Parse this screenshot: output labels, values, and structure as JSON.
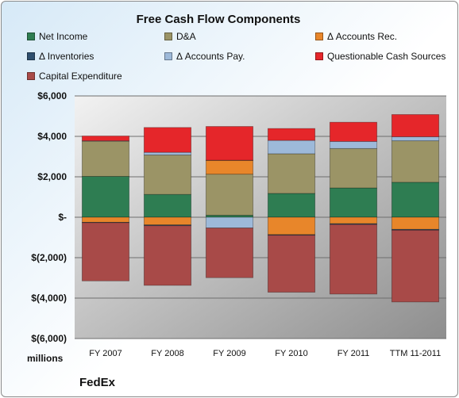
{
  "company": "FedEx",
  "chart_data": {
    "type": "bar",
    "stacked": true,
    "title": "Free Cash Flow Components",
    "units": "millions",
    "categories": [
      "FY 2007",
      "FY 2008",
      "FY 2009",
      "FY 2010",
      "FY 2011",
      "TTM 11-2011"
    ],
    "ylim": [
      -6000,
      6000
    ],
    "yticks": [
      6000,
      4000,
      2000,
      0,
      -2000,
      -4000,
      -6000
    ],
    "ytick_labels": [
      "$6,000",
      "$4,000",
      "$2,000",
      "$-",
      "$(2,000)",
      "$(4,000)",
      "$(6,000)"
    ],
    "grid": true,
    "legend_position": "top",
    "series": [
      {
        "name": "Net Income",
        "color": "#2e7d52",
        "values": [
          2020,
          1130,
          100,
          1180,
          1450,
          1730
        ]
      },
      {
        "name": "D&A",
        "color": "#9b9466",
        "values": [
          1740,
          1950,
          2030,
          1960,
          1950,
          2050
        ]
      },
      {
        "name": "Δ Accounts Rec.",
        "color": "#e8862a",
        "values": [
          -250,
          -380,
          680,
          -860,
          -320,
          -600
        ]
      },
      {
        "name": "Δ Inventories",
        "color": "#2f4f6e",
        "values": [
          -20,
          -40,
          10,
          -30,
          -40,
          -40
        ]
      },
      {
        "name": "Δ Accounts Pay.",
        "color": "#9db9d9",
        "values": [
          20,
          130,
          -530,
          660,
          350,
          200
        ]
      },
      {
        "name": "Questionable Cash Sources",
        "color": "#e5262a",
        "values": [
          240,
          1230,
          1670,
          590,
          950,
          1100
        ]
      },
      {
        "name": "Capital Expenditure",
        "color": "#a84a48",
        "values": [
          -2880,
          -2950,
          -2460,
          -2820,
          -3440,
          -3550
        ]
      }
    ]
  }
}
